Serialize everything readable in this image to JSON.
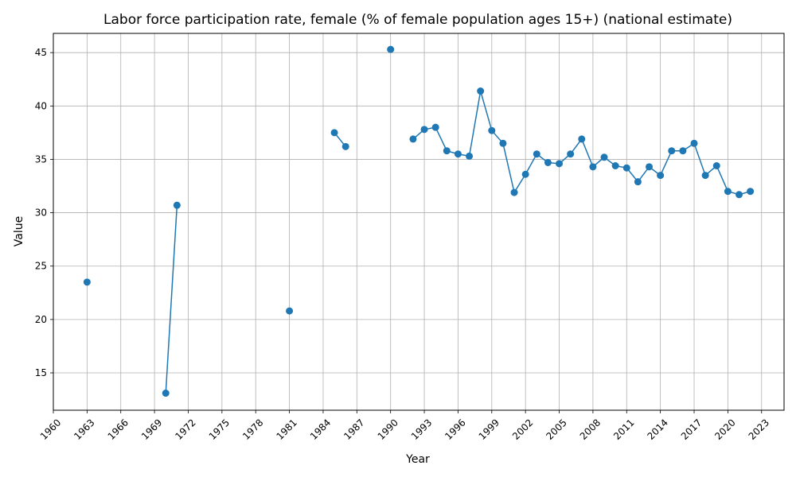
{
  "chart_data": {
    "type": "line",
    "title": "Labor force participation rate, female (% of female population ages 15+) (national estimate)",
    "xlabel": "Year",
    "ylabel": "Value",
    "xlim": [
      1960,
      2025
    ],
    "ylim": [
      11.5,
      46.8
    ],
    "x_ticks": [
      1960,
      1963,
      1966,
      1969,
      1972,
      1975,
      1978,
      1981,
      1984,
      1987,
      1990,
      1993,
      1996,
      1999,
      2002,
      2005,
      2008,
      2011,
      2014,
      2017,
      2020,
      2023
    ],
    "y_ticks": [
      15,
      20,
      25,
      30,
      35,
      40,
      45
    ],
    "grid": true,
    "color": "#1f77b4",
    "series": [
      {
        "x": [
          1963,
          1970,
          1971,
          1981,
          1985,
          1986,
          1990,
          1992,
          1993,
          1994,
          1995,
          1996,
          1997,
          1998,
          1999,
          2000,
          2001,
          2002,
          2003,
          2004,
          2005,
          2006,
          2007,
          2008,
          2009,
          2010,
          2011,
          2012,
          2013,
          2014,
          2015,
          2016,
          2017,
          2018,
          2019,
          2020,
          2021,
          2022
        ],
        "values": [
          23.5,
          13.1,
          30.7,
          20.8,
          37.5,
          36.2,
          45.3,
          36.9,
          37.8,
          38.0,
          35.8,
          35.5,
          35.3,
          41.4,
          37.7,
          36.5,
          31.9,
          33.6,
          35.5,
          34.7,
          34.6,
          35.5,
          36.9,
          34.3,
          35.2,
          34.4,
          34.2,
          32.9,
          34.3,
          33.5,
          35.8,
          35.8,
          36.5,
          33.5,
          34.4,
          32.0,
          31.7,
          32.0
        ]
      }
    ]
  }
}
